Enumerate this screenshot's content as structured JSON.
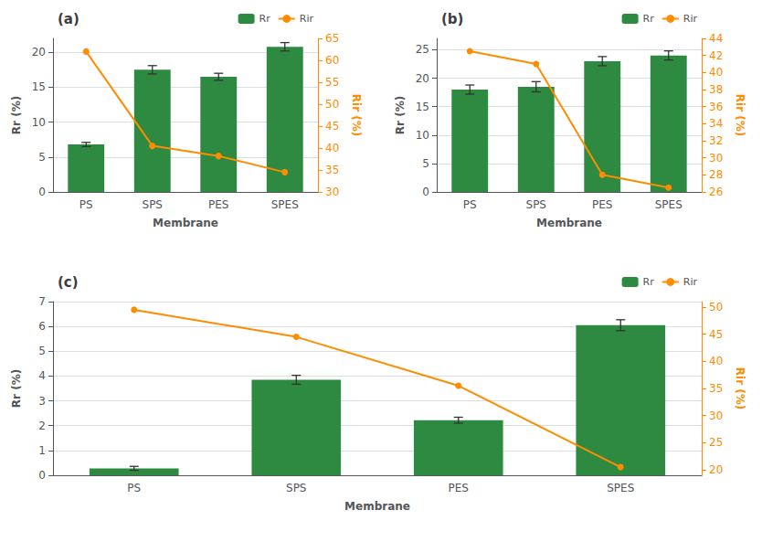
{
  "chart_data": [
    {
      "type": "bar",
      "title": "(a)",
      "categories": [
        "PS",
        "SPS",
        "PES",
        "SPES"
      ],
      "xlabel": "Membrane",
      "ylabel": "Rr (%)",
      "y2label": "Rir (%)",
      "series": [
        {
          "name": "Rr",
          "type": "bar",
          "color": "#2d8a40",
          "values": [
            6.8,
            17.5,
            16.5,
            20.8
          ],
          "errors": [
            0.3,
            0.6,
            0.5,
            0.6
          ]
        },
        {
          "name": "Rir",
          "type": "line",
          "axis": "y2",
          "color": "#ff8c00",
          "marker": "circle",
          "values": [
            62.0,
            40.5,
            38.2,
            34.5
          ]
        }
      ],
      "ylim": [
        0,
        22
      ],
      "yticks": [
        0,
        5,
        10,
        15,
        20
      ],
      "y2lim": [
        30,
        65
      ],
      "y2ticks": [
        30,
        35,
        40,
        45,
        50,
        55,
        60,
        65
      ],
      "grid": true,
      "legend": "upper right"
    },
    {
      "type": "bar",
      "title": "(b)",
      "categories": [
        "PS",
        "SPS",
        "PES",
        "SPES"
      ],
      "xlabel": "Membrane",
      "ylabel": "Rr (%)",
      "y2label": "Rir (%)",
      "series": [
        {
          "name": "Rr",
          "type": "bar",
          "color": "#2d8a40",
          "values": [
            18.0,
            18.5,
            23.0,
            24.0
          ],
          "errors": [
            0.8,
            0.9,
            0.8,
            0.8
          ]
        },
        {
          "name": "Rir",
          "type": "line",
          "axis": "y2",
          "color": "#ff8c00",
          "marker": "circle",
          "values": [
            42.5,
            41.0,
            28.0,
            26.5
          ]
        }
      ],
      "ylim": [
        0,
        27
      ],
      "yticks": [
        0,
        5,
        10,
        15,
        20,
        25
      ],
      "y2lim": [
        26,
        44
      ],
      "y2ticks": [
        26,
        28,
        30,
        32,
        34,
        36,
        38,
        40,
        42,
        44
      ],
      "grid": true,
      "legend": "upper right"
    },
    {
      "type": "bar",
      "title": "(c)",
      "categories": [
        "PS",
        "SPS",
        "PES",
        "SPES"
      ],
      "xlabel": "Membrane",
      "ylabel": "Rr (%)",
      "y2label": "Rir (%)",
      "series": [
        {
          "name": "Rr",
          "type": "bar",
          "color": "#2d8a40",
          "values": [
            0.28,
            3.85,
            2.22,
            6.05
          ],
          "errors": [
            0.08,
            0.18,
            0.12,
            0.22
          ]
        },
        {
          "name": "Rir",
          "type": "line",
          "axis": "y2",
          "color": "#ff8c00",
          "marker": "circle",
          "values": [
            49.5,
            44.5,
            35.5,
            20.5
          ]
        }
      ],
      "ylim": [
        0,
        7
      ],
      "yticks": [
        0,
        1,
        2,
        3,
        4,
        5,
        6,
        7
      ],
      "y2lim": [
        19,
        51
      ],
      "y2ticks": [
        20,
        25,
        30,
        35,
        40,
        45,
        50
      ],
      "grid": true,
      "legend": "upper right"
    }
  ]
}
